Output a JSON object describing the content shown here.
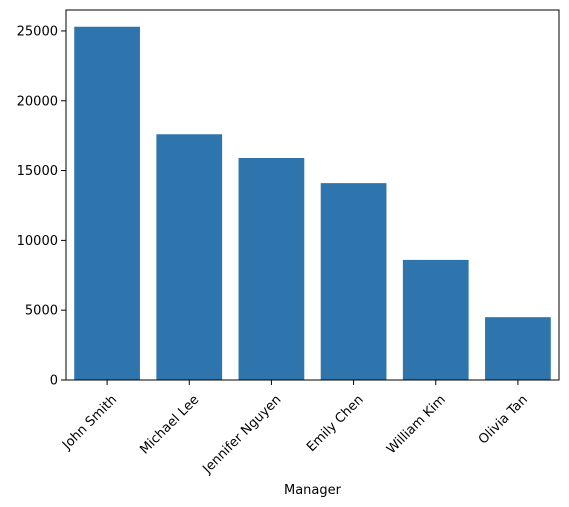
{
  "chart_data": {
    "type": "bar",
    "categories": [
      "John Smith",
      "Michael Lee",
      "Jennifer Nguyen",
      "Emily Chen",
      "William Kim",
      "Olivia Tan"
    ],
    "values": [
      25300,
      17600,
      15900,
      14100,
      8600,
      4500
    ],
    "title": "",
    "xlabel": "Manager",
    "ylabel": "",
    "ylim": [
      0,
      26500
    ],
    "yticks": [
      0,
      5000,
      10000,
      15000,
      20000,
      25000
    ],
    "grid": false,
    "legend": "none",
    "bar_color": "#2e75ad"
  }
}
